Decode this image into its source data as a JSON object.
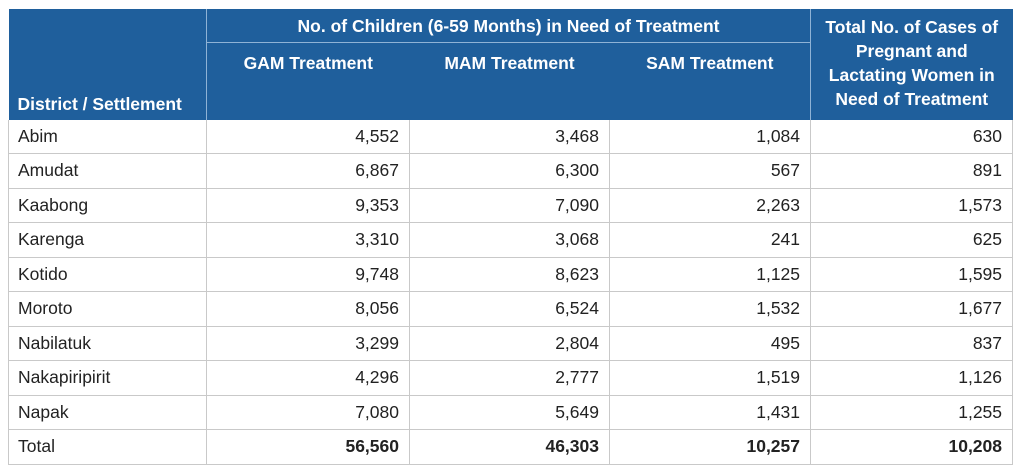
{
  "header": {
    "group_label": "No. of Children (6-59 Months) in Need of Treatment",
    "district_label": "District / Settlement",
    "gam_label": "GAM Treatment",
    "mam_label": "MAM Treatment",
    "sam_label": "SAM Treatment",
    "pw_label": "Total No. of Cases of Pregnant and Lactating Women in Need of Treatment"
  },
  "rows": [
    {
      "district": "Abim",
      "gam": "4,552",
      "mam": "3,468",
      "sam": "1,084",
      "pw": "630"
    },
    {
      "district": "Amudat",
      "gam": "6,867",
      "mam": "6,300",
      "sam": "567",
      "pw": "891"
    },
    {
      "district": "Kaabong",
      "gam": "9,353",
      "mam": "7,090",
      "sam": "2,263",
      "pw": "1,573"
    },
    {
      "district": "Karenga",
      "gam": "3,310",
      "mam": "3,068",
      "sam": "241",
      "pw": "625"
    },
    {
      "district": "Kotido",
      "gam": "9,748",
      "mam": "8,623",
      "sam": "1,125",
      "pw": "1,595"
    },
    {
      "district": "Moroto",
      "gam": "8,056",
      "mam": "6,524",
      "sam": "1,532",
      "pw": "1,677"
    },
    {
      "district": "Nabilatuk",
      "gam": "3,299",
      "mam": "2,804",
      "sam": "495",
      "pw": "837"
    },
    {
      "district": "Nakapiripirit",
      "gam": "4,296",
      "mam": "2,777",
      "sam": "1,519",
      "pw": "1,126"
    },
    {
      "district": "Napak",
      "gam": "7,080",
      "mam": "5,649",
      "sam": "1,431",
      "pw": "1,255"
    }
  ],
  "total": {
    "district": "Total",
    "gam": "56,560",
    "mam": "46,303",
    "sam": "10,257",
    "pw": "10,208"
  },
  "colors": {
    "header_bg": "#1f5f9c",
    "header_text": "#ffffff",
    "grid": "#c9c9c9"
  }
}
